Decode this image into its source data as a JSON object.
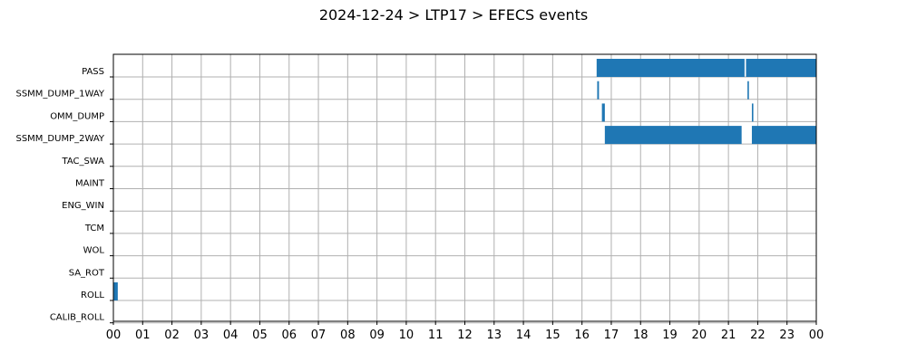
{
  "chart_data": {
    "type": "bar",
    "orientation": "horizontal-timeline",
    "title": "2024-12-24 > LTP17 > EFECS events",
    "xlabel": "",
    "ylabel": "",
    "xlim": [
      0,
      24
    ],
    "x_ticks": [
      "00",
      "01",
      "02",
      "03",
      "04",
      "05",
      "06",
      "07",
      "08",
      "09",
      "10",
      "11",
      "12",
      "13",
      "14",
      "15",
      "16",
      "17",
      "18",
      "19",
      "20",
      "21",
      "22",
      "23",
      "00"
    ],
    "grid": true,
    "bar_color": "#1f77b4",
    "categories": [
      "PASS",
      "SSMM_DUMP_1WAY",
      "OMM_DUMP",
      "SSMM_DUMP_2WAY",
      "TAC_SWA",
      "MAINT",
      "ENG_WIN",
      "TCM",
      "WOL",
      "SA_ROT",
      "ROLL",
      "CALIB_ROLL"
    ],
    "events": [
      {
        "category": "PASS",
        "start": 16.5,
        "end": 21.55
      },
      {
        "category": "PASS",
        "start": 21.6,
        "end": 24.0
      },
      {
        "category": "SSMM_DUMP_1WAY",
        "start": 16.52,
        "end": 16.58
      },
      {
        "category": "SSMM_DUMP_1WAY",
        "start": 21.65,
        "end": 21.7
      },
      {
        "category": "OMM_DUMP",
        "start": 16.68,
        "end": 16.78
      },
      {
        "category": "OMM_DUMP",
        "start": 21.8,
        "end": 21.85
      },
      {
        "category": "SSMM_DUMP_2WAY",
        "start": 16.78,
        "end": 21.45
      },
      {
        "category": "SSMM_DUMP_2WAY",
        "start": 21.8,
        "end": 24.0
      },
      {
        "category": "ROLL",
        "start": 0.0,
        "end": 0.15
      }
    ]
  }
}
